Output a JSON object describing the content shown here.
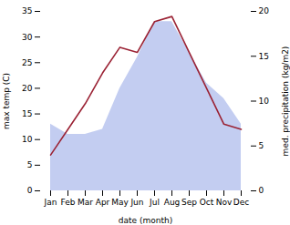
{
  "chart_data": {
    "type": "line",
    "xlabel": "date (month)",
    "ylabel": "max temp (C)",
    "y2label": "med. precipitation (kg/m2)",
    "categories": [
      "Jan",
      "Feb",
      "Mar",
      "Apr",
      "May",
      "Jun",
      "Jul",
      "Aug",
      "Sep",
      "Oct",
      "Nov",
      "Dec"
    ],
    "series": [
      {
        "type": "area",
        "color": "#b8c4ee",
        "values": [
          13,
          11,
          11,
          12,
          20,
          26,
          33,
          33,
          27,
          21,
          18,
          13
        ]
      },
      {
        "type": "line",
        "color": "#9b2335",
        "values": [
          7,
          12,
          17,
          23,
          28,
          27,
          33,
          34,
          27,
          20,
          13,
          12
        ]
      }
    ],
    "ylim": [
      0,
      35
    ],
    "yticks": [
      0,
      5,
      10,
      15,
      20,
      25,
      30,
      35
    ],
    "y2lim": [
      0,
      20
    ],
    "y2ticks": [
      0,
      5,
      10,
      15,
      20
    ]
  }
}
